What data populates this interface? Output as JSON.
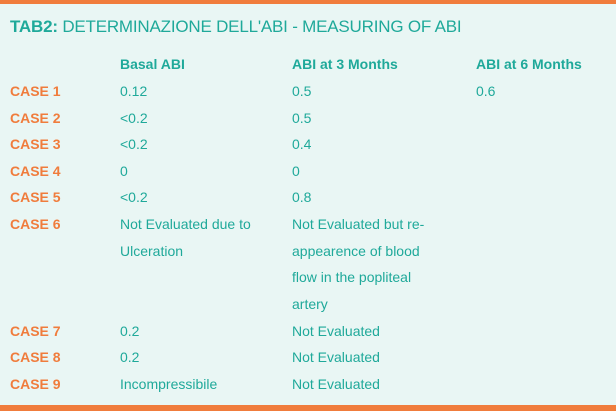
{
  "colors": {
    "accent": "#f07c3c",
    "text": "#1fa99a",
    "background": "#e9f6f4"
  },
  "title": {
    "prefix": "TAB2:",
    "text": " DETERMINAZIONE DELL'ABI - MEASURING OF ABI"
  },
  "columns": [
    "Basal ABI",
    "ABI at 3 Months",
    "ABI at 6 Months"
  ],
  "rows": [
    {
      "case": "CASE 1",
      "basal": "0.12",
      "m3": "0.5",
      "m6": "0.6"
    },
    {
      "case": "CASE 2",
      "basal": "<0.2",
      "m3": "0.5",
      "m6": ""
    },
    {
      "case": "CASE 3",
      "basal": "<0.2",
      "m3": "0.4",
      "m6": ""
    },
    {
      "case": "CASE 4",
      "basal": "0",
      "m3": "0",
      "m6": ""
    },
    {
      "case": "CASE 5",
      "basal": "<0.2",
      "m3": "0.8",
      "m6": ""
    },
    {
      "case": "CASE 6",
      "basal": "Not Evaluated due to Ulceration",
      "m3": "Not Evaluated but re-appearence of blood flow in the popliteal artery",
      "m6": ""
    },
    {
      "case": "CASE 7",
      "basal": "0.2",
      "m3": "Not Evaluated",
      "m6": ""
    },
    {
      "case": "CASE 8",
      "basal": "0.2",
      "m3": "Not Evaluated",
      "m6": ""
    },
    {
      "case": "CASE 9",
      "basal": "Incompressibile",
      "m3": "Not Evaluated",
      "m6": ""
    }
  ]
}
